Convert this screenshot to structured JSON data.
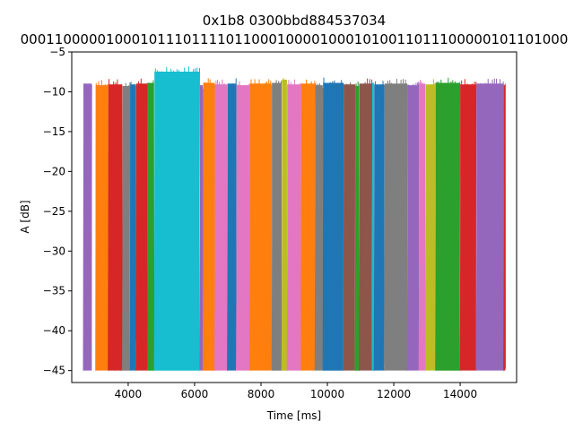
{
  "chart_data": {
    "type": "line",
    "title": "0x1b8 0300bbd884537034",
    "subtitle": "0001100000100010111011110110001000010001010011011100000101101000",
    "xlabel": "Time [ms]",
    "ylabel": "A [dB]",
    "xlim": [
      2300,
      15700
    ],
    "ylim": [
      -46.5,
      -5
    ],
    "xticks": [
      4000,
      6000,
      8000,
      10000,
      12000,
      14000
    ],
    "xtick_labels": [
      "4000",
      "6000",
      "8000",
      "10000",
      "12000",
      "14000"
    ],
    "yticks": [
      -5,
      -10,
      -15,
      -20,
      -25,
      -30,
      -35,
      -40,
      -45
    ],
    "ytick_labels": [
      "−5",
      "−10",
      "−15",
      "−20",
      "−25",
      "−30",
      "−35",
      "−40",
      "−45"
    ],
    "grid": false,
    "floor": -45,
    "series": [
      {
        "color": "#9467bd",
        "x": [
          2650,
          2900
        ],
        "peak": -8.3
      },
      {
        "color": "#ff7f0e",
        "x": [
          3020,
          3390
        ],
        "peak": -8.5
      },
      {
        "color": "#d62728",
        "x": [
          3400,
          3820
        ],
        "peak": -8.4
      },
      {
        "color": "#7f7f7f",
        "x": [
          3830,
          4050
        ],
        "peak": -8.6
      },
      {
        "color": "#1f77b4",
        "x": [
          4060,
          4230
        ],
        "peak": -8.4
      },
      {
        "color": "#d62728",
        "x": [
          4240,
          4580
        ],
        "peak": -8.3
      },
      {
        "color": "#2ca02c",
        "x": [
          4590,
          4780
        ],
        "peak": -8.2
      },
      {
        "color": "#17becf",
        "x": [
          4790,
          6150
        ],
        "peak": -6.8
      },
      {
        "color": "#9467bd",
        "x": [
          6160,
          6250
        ],
        "peak": -8.5
      },
      {
        "color": "#ff7f0e",
        "x": [
          6260,
          6600
        ],
        "peak": -8.2
      },
      {
        "color": "#e377c2",
        "x": [
          6610,
          6980
        ],
        "peak": -8.4
      },
      {
        "color": "#1f77b4",
        "x": [
          6990,
          7250
        ],
        "peak": -8.3
      },
      {
        "color": "#e377c2",
        "x": [
          7260,
          7650
        ],
        "peak": -8.5
      },
      {
        "color": "#ff7f0e",
        "x": [
          7660,
          8320
        ],
        "peak": -8.3
      },
      {
        "color": "#7f7f7f",
        "x": [
          8330,
          8620
        ],
        "peak": -8.2
      },
      {
        "color": "#bcbd22",
        "x": [
          8630,
          8780
        ],
        "peak": -7.8
      },
      {
        "color": "#e377c2",
        "x": [
          8790,
          9200
        ],
        "peak": -8.4
      },
      {
        "color": "#ff7f0e",
        "x": [
          9210,
          9620
        ],
        "peak": -8.3
      },
      {
        "color": "#7f7f7f",
        "x": [
          9630,
          9860
        ],
        "peak": -8.5
      },
      {
        "color": "#1f77b4",
        "x": [
          9870,
          10480
        ],
        "peak": -8.2
      },
      {
        "color": "#8c564b",
        "x": [
          10490,
          10830
        ],
        "peak": -8.4
      },
      {
        "color": "#2ca02c",
        "x": [
          10840,
          10950
        ],
        "peak": -8.6
      },
      {
        "color": "#8c564b",
        "x": [
          10960,
          11340
        ],
        "peak": -8.3
      },
      {
        "color": "#17becf",
        "x": [
          11350,
          11400
        ],
        "peak": -8.2
      },
      {
        "color": "#1f77b4",
        "x": [
          11410,
          11710
        ],
        "peak": -8.4
      },
      {
        "color": "#7f7f7f",
        "x": [
          11720,
          12400
        ],
        "peak": -8.3
      },
      {
        "color": "#9467bd",
        "x": [
          12410,
          12750
        ],
        "peak": -8.5
      },
      {
        "color": "#e377c2",
        "x": [
          12760,
          12950
        ],
        "peak": -8.3
      },
      {
        "color": "#bcbd22",
        "x": [
          12960,
          13250
        ],
        "peak": -8.4
      },
      {
        "color": "#2ca02c",
        "x": [
          13260,
          13990
        ],
        "peak": -8.2
      },
      {
        "color": "#d62728",
        "x": [
          14000,
          14480
        ],
        "peak": -8.4
      },
      {
        "color": "#9467bd",
        "x": [
          14490,
          15300
        ],
        "peak": -8.3
      },
      {
        "color": "#d62728",
        "x": [
          15310,
          15360
        ],
        "peak": -8.5
      }
    ]
  }
}
